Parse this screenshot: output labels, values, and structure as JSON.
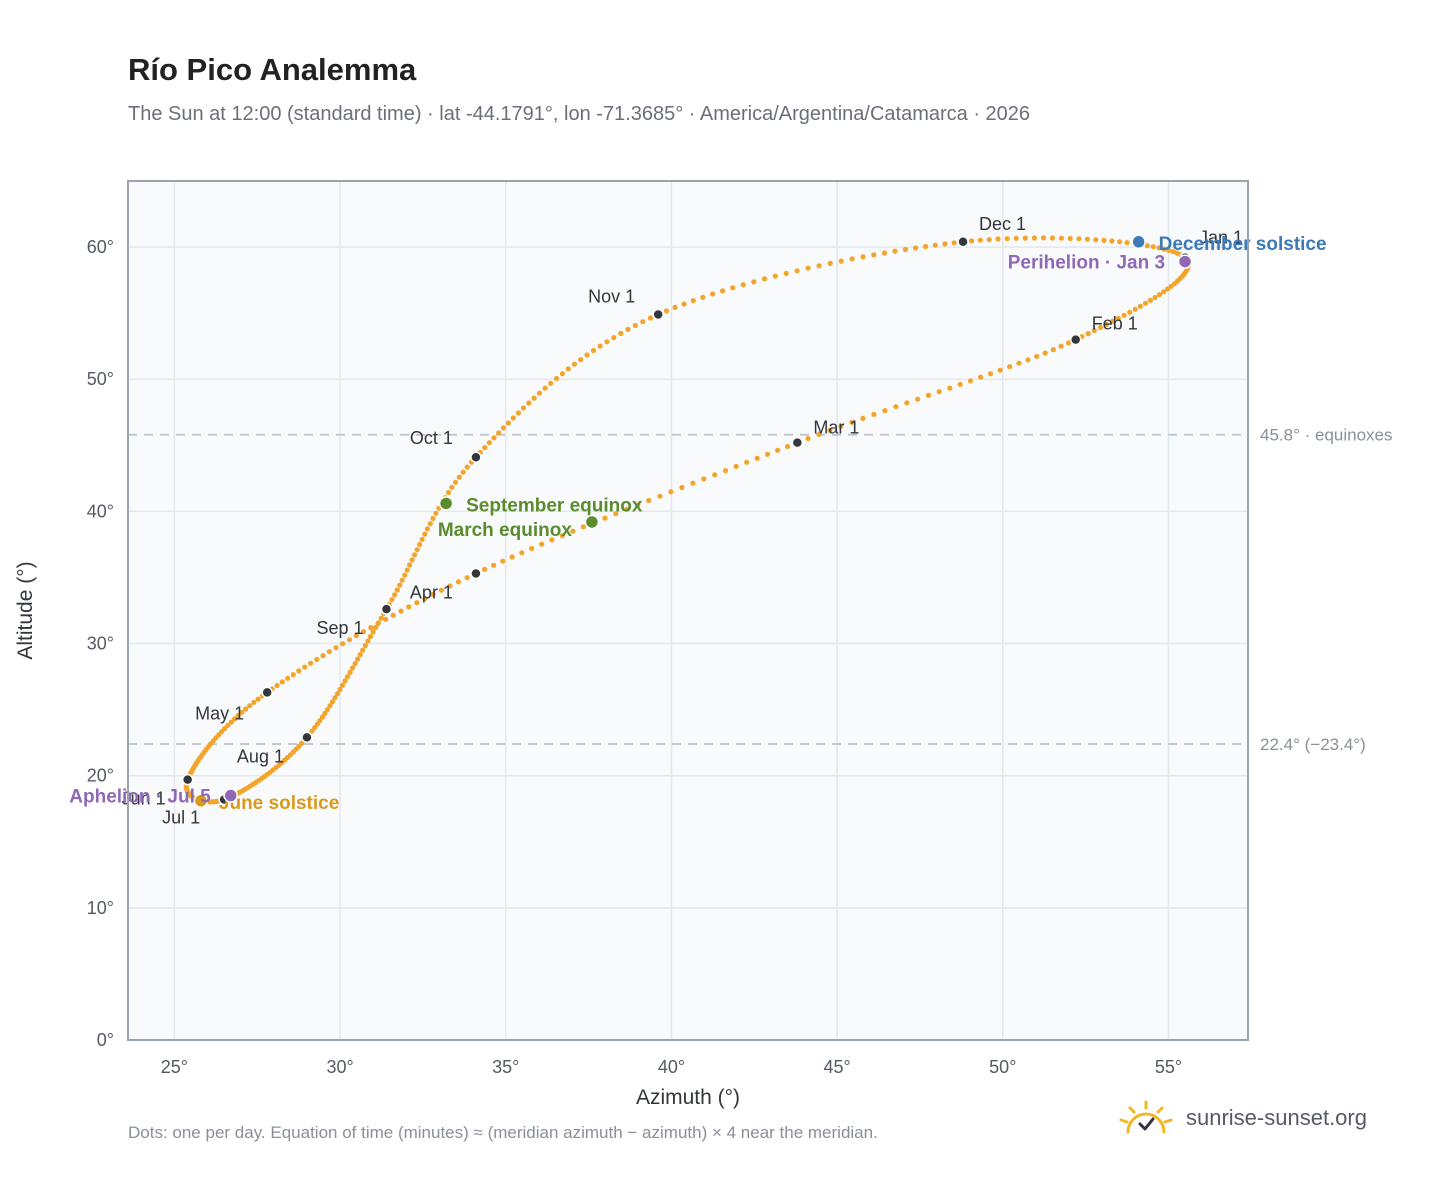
{
  "title": "Río Pico Analemma",
  "subtitle": "The Sun at 12:00 (standard time) · lat -44.1791°, lon -71.3685° · America/Argentina/Catamarca · 2026",
  "footnote": "Dots: one per day. Equation of time (minutes) ≈ (meridian azimuth − azimuth) × 4 near the meridian.",
  "brand": {
    "name": "sunrise-sunset.org",
    "icon": "sun-logo-icon"
  },
  "colors": {
    "path": "#f2a52a",
    "month_dot": "#33363d",
    "equinox": "#5b8c2e",
    "december_solstice": "#3d7ab8",
    "june_solstice": "#d99a1c",
    "apsis": "#8e69b5",
    "reference_line": "#b8c4ce",
    "grid": "#e3e8ee",
    "plot_bg": "#f8fafc",
    "frame": "#9aa3ae"
  },
  "chart_data": {
    "type": "scatter",
    "xlabel": "Azimuth (°)",
    "ylabel": "Altitude (°)",
    "xlim": [
      23.6,
      57.4
    ],
    "ylim": [
      0,
      65
    ],
    "xticks": [
      25,
      30,
      35,
      40,
      45,
      50,
      55
    ],
    "yticks": [
      0,
      10,
      20,
      30,
      40,
      50,
      60
    ],
    "tick_suffix": "°",
    "grid": true,
    "path_keypoints": [
      {
        "date": "Jan 1",
        "az": 55.5,
        "alt": 59.2
      },
      {
        "date": "Feb 1",
        "az": 52.2,
        "alt": 53.0
      },
      {
        "date": "Mar 1",
        "az": 43.8,
        "alt": 45.2
      },
      {
        "date": "Apr 1",
        "az": 34.1,
        "alt": 35.3
      },
      {
        "date": "May 1",
        "az": 27.8,
        "alt": 26.3
      },
      {
        "date": "Jun 1",
        "az": 25.4,
        "alt": 19.7
      },
      {
        "date": "Jul 1",
        "az": 26.5,
        "alt": 18.2
      },
      {
        "date": "Aug 1",
        "az": 29.0,
        "alt": 22.9
      },
      {
        "date": "Sep 1",
        "az": 31.4,
        "alt": 32.6
      },
      {
        "date": "Oct 1",
        "az": 34.1,
        "alt": 44.1
      },
      {
        "date": "Nov 1",
        "az": 39.6,
        "alt": 54.9
      },
      {
        "date": "Dec 1",
        "az": 48.8,
        "alt": 60.4
      }
    ],
    "month_markers": [
      {
        "label": "Jan 1",
        "az": 55.5,
        "alt": 59.2
      },
      {
        "label": "Feb 1",
        "az": 52.2,
        "alt": 53.0
      },
      {
        "label": "Mar 1",
        "az": 43.8,
        "alt": 45.2
      },
      {
        "label": "Apr 1",
        "az": 34.1,
        "alt": 35.3
      },
      {
        "label": "May 1",
        "az": 27.8,
        "alt": 26.3
      },
      {
        "label": "Jun 1",
        "az": 25.4,
        "alt": 19.7
      },
      {
        "label": "Jul 1",
        "az": 26.5,
        "alt": 18.2
      },
      {
        "label": "Aug 1",
        "az": 29.0,
        "alt": 22.9
      },
      {
        "label": "Sep 1",
        "az": 31.4,
        "alt": 32.6
      },
      {
        "label": "Oct 1",
        "az": 34.1,
        "alt": 44.1
      },
      {
        "label": "Nov 1",
        "az": 39.6,
        "alt": 54.9
      },
      {
        "label": "Dec 1",
        "az": 48.8,
        "alt": 60.4
      }
    ],
    "events": [
      {
        "label": "September equinox",
        "az": 33.2,
        "alt": 40.6,
        "kind": "equinox"
      },
      {
        "label": "March equinox",
        "az": 37.6,
        "alt": 39.2,
        "kind": "equinox"
      },
      {
        "label": "December solstice",
        "az": 54.1,
        "alt": 60.4,
        "kind": "december_solstice"
      },
      {
        "label": "June solstice",
        "az": 25.8,
        "alt": 18.1,
        "kind": "june_solstice"
      },
      {
        "label": "Perihelion · Jan 3",
        "az": 55.5,
        "alt": 58.9,
        "kind": "apsis"
      },
      {
        "label": "Aphelion · Jul 5",
        "az": 26.7,
        "alt": 18.5,
        "kind": "apsis"
      }
    ],
    "reference_lines": [
      {
        "value": 45.8,
        "label": "45.8° · equinoxes"
      },
      {
        "value": 22.4,
        "label": "22.4° (−23.4°)"
      }
    ]
  }
}
